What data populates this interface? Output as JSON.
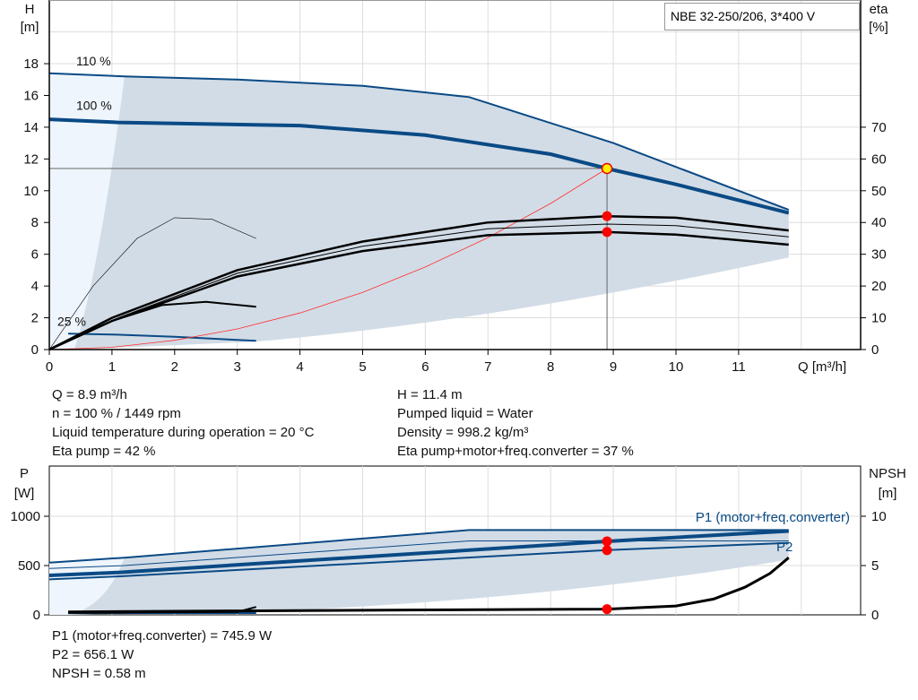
{
  "title_box": "NBE 32-250/206, 3*400 V",
  "info_top": {
    "left": [
      "Q = 8.9 m³/h",
      "n = 100 % / 1449 rpm",
      "Liquid temperature during operation = 20 °C",
      "Eta pump = 42 %"
    ],
    "right": [
      "H = 11.4 m",
      "Pumped liquid = Water",
      "Density = 998.2 kg/m³",
      "Eta pump+motor+freq.converter = 37 %"
    ]
  },
  "info_bottom": [
    "P1 (motor+freq.converter) = 745.9 W",
    "P2 = 656.1 W",
    "NPSH = 0.58 m"
  ],
  "colors": {
    "curve": "#0a4a85",
    "area": "#d2dce6",
    "area_light": "#eef5fc",
    "point": "#ff0000",
    "system": "#ff3030",
    "eta": "#000000"
  },
  "chart_data": [
    {
      "type": "line",
      "xlabel": "Q [m³/h]",
      "ylabel": "H\n[m]",
      "y2label": "eta\n[%]",
      "xlim": [
        0,
        12.9
      ],
      "ylim": [
        0,
        22
      ],
      "y2lim": [
        0,
        110
      ],
      "xticks": [
        0,
        1,
        2,
        3,
        4,
        5,
        6,
        7,
        8,
        9,
        10,
        11
      ],
      "yticks": [
        0,
        2,
        4,
        6,
        8,
        10,
        12,
        14,
        16,
        18
      ],
      "y2ticks": [
        0,
        10,
        20,
        30,
        40,
        50,
        60,
        70
      ],
      "grid": true,
      "speed_labels": [
        {
          "text": "110 %",
          "x": 0.4,
          "y": 17.9
        },
        {
          "text": "100 %",
          "x": 0.4,
          "y": 15.1
        },
        {
          "text": "25 %",
          "x": 0.1,
          "y": 1.5
        }
      ],
      "head_series": [
        {
          "name": "110 %",
          "x": [
            0,
            1.2,
            3,
            5,
            6.7,
            9,
            11.8
          ],
          "y": [
            17.4,
            17.2,
            17.0,
            16.6,
            15.9,
            13.0,
            8.8
          ]
        },
        {
          "name": "100 %",
          "x": [
            0,
            1.1,
            4,
            6,
            8,
            8.9,
            10,
            11.8
          ],
          "y": [
            14.5,
            14.3,
            14.1,
            13.5,
            12.3,
            11.4,
            10.4,
            8.6
          ]
        },
        {
          "name": "25 %",
          "x": [
            0.3,
            1,
            2,
            3.3
          ],
          "y": [
            1.0,
            0.95,
            0.8,
            0.55
          ]
        }
      ],
      "system_curve": {
        "x": [
          0,
          1,
          2,
          3,
          4,
          5,
          6,
          7,
          8,
          8.9
        ],
        "y": [
          0,
          0.14,
          0.58,
          1.3,
          2.3,
          3.6,
          5.2,
          7.05,
          9.2,
          11.4
        ]
      },
      "eta_series": [
        {
          "name": "Eta pump",
          "x": [
            0,
            1,
            3,
            5,
            7,
            8.9,
            10,
            11.8
          ],
          "y": [
            0,
            10,
            25,
            34,
            40,
            42,
            41.5,
            37.5
          ]
        },
        {
          "name": "Eta pump+motor+freq.converter",
          "x": [
            0,
            1,
            3,
            5,
            7,
            8.9,
            10,
            11.8
          ],
          "y": [
            0,
            9,
            23,
            31,
            36,
            37,
            36.2,
            33
          ]
        },
        {
          "x": [
            1.1,
            3,
            5,
            7,
            8.9,
            10,
            11.8
          ],
          "y": [
            10,
            24,
            32.5,
            38,
            39.5,
            39,
            35.5
          ]
        },
        {
          "x": [
            0,
            0.7,
            1.4,
            2,
            2.6,
            3.3
          ],
          "y": [
            0,
            20,
            35,
            41.5,
            41,
            35
          ]
        },
        {
          "x": [
            1,
            1.8,
            2.5,
            3.3
          ],
          "y": [
            9,
            14,
            15,
            13.5
          ]
        }
      ],
      "operating_point": {
        "Q": 8.9,
        "H": 11.4,
        "eta_pump": 42,
        "eta_total": 37
      }
    },
    {
      "type": "line",
      "ylabel": "P\n[W]",
      "y2label": "NPSH\n[m]",
      "xlim": [
        0,
        12.9
      ],
      "ylim": [
        0,
        1500
      ],
      "y2lim": [
        0,
        15
      ],
      "yticks": [
        0,
        500,
        1000
      ],
      "y2ticks": [
        0,
        5,
        10
      ],
      "grid": true,
      "series": [
        {
          "name": "P1 (motor+freq.converter)",
          "x": [
            0,
            1.2,
            6.7,
            11.8
          ],
          "y": [
            530,
            580,
            860,
            860
          ]
        },
        {
          "x": [
            0,
            1.2,
            6.7,
            11.8
          ],
          "y": [
            470,
            500,
            750,
            750
          ]
        },
        {
          "name": "P1 (motor+freq.converter)",
          "x": [
            0,
            1.1,
            8.9,
            11.8
          ],
          "y": [
            400,
            430,
            745.9,
            850
          ]
        },
        {
          "name": "P2",
          "x": [
            0,
            1.1,
            8.9,
            11.8
          ],
          "y": [
            360,
            390,
            656.1,
            730
          ]
        },
        {
          "x": [
            0.3,
            3.3
          ],
          "y": [
            20,
            20
          ]
        }
      ],
      "npsh": {
        "x": [
          0.3,
          3,
          6,
          8.9,
          10,
          10.6,
          11.1,
          11.5,
          11.8
        ],
        "y": [
          0.3,
          0.4,
          0.5,
          0.58,
          0.9,
          1.6,
          2.8,
          4.2,
          5.8
        ]
      },
      "operating_point": {
        "P1": 745.9,
        "P2": 656.1,
        "NPSH": 0.58
      },
      "curve_labels": [
        "P1 (motor+freq.converter)",
        "P2"
      ]
    }
  ]
}
